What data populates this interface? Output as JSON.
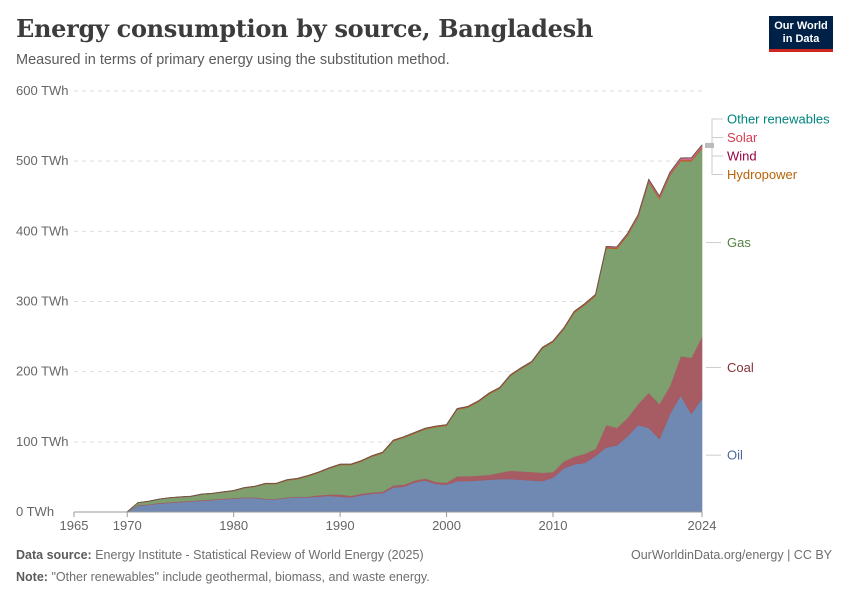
{
  "header": {
    "title": "Energy consumption by source, Bangladesh",
    "subtitle": "Measured in terms of primary energy using the substitution method."
  },
  "logo": {
    "line1": "Our World",
    "line2": "in Data"
  },
  "footer": {
    "source_label": "Data source:",
    "source_text": "Energy Institute - Statistical Review of World Energy (2025)",
    "link": "OurWorldinData.org/energy | CC BY",
    "note_label": "Note:",
    "note_text": "\"Other renewables\" include geothermal, biomass, and waste energy."
  },
  "chart_data": {
    "type": "area",
    "stacked": true,
    "title": "Energy consumption by source, Bangladesh",
    "unit": "TWh",
    "ylim": [
      0,
      600
    ],
    "y_ticks": [
      0,
      100,
      200,
      300,
      400,
      500,
      600
    ],
    "y_tick_labels": [
      "0 TWh",
      "100 TWh",
      "200 TWh",
      "300 TWh",
      "400 TWh",
      "500 TWh",
      "600 TWh"
    ],
    "xlim": [
      1965,
      2024
    ],
    "x_ticks": [
      1965,
      1970,
      1980,
      1990,
      2000,
      2010,
      2024
    ],
    "x_tick_labels": [
      "1965",
      "1970",
      "1980",
      "1990",
      "2000",
      "2010",
      "2024"
    ],
    "grid": true,
    "x": [
      1965,
      1966,
      1967,
      1968,
      1969,
      1970,
      1971,
      1972,
      1973,
      1974,
      1975,
      1976,
      1977,
      1978,
      1979,
      1980,
      1981,
      1982,
      1983,
      1984,
      1985,
      1986,
      1987,
      1988,
      1989,
      1990,
      1991,
      1992,
      1993,
      1994,
      1995,
      1996,
      1997,
      1998,
      1999,
      2000,
      2001,
      2002,
      2003,
      2004,
      2005,
      2006,
      2007,
      2008,
      2009,
      2010,
      2011,
      2012,
      2013,
      2014,
      2015,
      2016,
      2017,
      2018,
      2019,
      2020,
      2021,
      2022,
      2023,
      2024
    ],
    "series": [
      {
        "name": "Oil",
        "color": "#6d87b1",
        "label_color": "#4c6a9c",
        "values": [
          0,
          0,
          0,
          0,
          0,
          0,
          9,
          10,
          12,
          13,
          14,
          15,
          16,
          17,
          18,
          19,
          20,
          20,
          18,
          18,
          20,
          21,
          21,
          22,
          23,
          22,
          21,
          24,
          26,
          27,
          35,
          36,
          42,
          45,
          40,
          39,
          44,
          44,
          45,
          46,
          47,
          47,
          46,
          45,
          44,
          49,
          62,
          68,
          70,
          80,
          92,
          95,
          108,
          124,
          120,
          104,
          140,
          166,
          140,
          162
        ]
      },
      {
        "name": "Coal",
        "color": "#a55860",
        "label_color": "#883039",
        "values": [
          0,
          0,
          0,
          0,
          0,
          0,
          1,
          1,
          1,
          1,
          1,
          1,
          1,
          1,
          1,
          1,
          1,
          1,
          1,
          1,
          1,
          1,
          1,
          2,
          2,
          3,
          2,
          2,
          2,
          2,
          3,
          3,
          3,
          3,
          3,
          3,
          7,
          7,
          7,
          7,
          9,
          12,
          12,
          12,
          12,
          8,
          10,
          11,
          13,
          10,
          32,
          25,
          26,
          30,
          50,
          50,
          40,
          56,
          80,
          88
        ]
      },
      {
        "name": "Gas",
        "color": "#7b9e6c",
        "label_color": "#578145",
        "values": [
          0,
          0,
          0,
          0,
          0,
          0,
          3,
          4,
          5,
          6,
          6,
          6,
          8,
          8,
          9,
          10,
          13,
          15,
          21,
          21,
          24,
          25,
          29,
          32,
          37,
          42,
          44,
          46,
          51,
          55,
          63,
          67,
          67,
          70,
          78,
          81,
          95,
          98,
          105,
          115,
          120,
          135,
          146,
          156,
          177,
          185,
          188,
          205,
          212,
          218,
          252,
          255,
          260,
          266,
          300,
          292,
          300,
          278,
          280,
          268
        ]
      },
      {
        "name": "Hydropower",
        "color": "#c05917",
        "label_color": "#b8620a",
        "values": [
          0,
          0,
          0,
          0,
          0,
          0.2,
          0.3,
          0.3,
          0.4,
          0.4,
          0.5,
          0.5,
          0.5,
          0.6,
          0.6,
          0.6,
          0.7,
          0.7,
          0.8,
          0.8,
          0.9,
          0.9,
          1,
          1,
          1.1,
          1.1,
          1.1,
          1.2,
          1.2,
          1.2,
          1.3,
          1.3,
          1.3,
          1.3,
          1.4,
          1.4,
          1.4,
          1.4,
          1.4,
          1.5,
          1.5,
          1.5,
          1.5,
          1.5,
          1.5,
          1.5,
          1.6,
          1.6,
          1.6,
          1.6,
          1.6,
          1.7,
          1.7,
          1.7,
          1.8,
          1.8,
          1.8,
          1.8,
          1.8,
          1.8
        ]
      },
      {
        "name": "Wind",
        "color": "#a2559c",
        "label_color": "#970046",
        "values": [
          0,
          0,
          0,
          0,
          0,
          0,
          0,
          0,
          0,
          0,
          0,
          0,
          0,
          0,
          0,
          0,
          0,
          0,
          0,
          0,
          0,
          0,
          0,
          0,
          0,
          0,
          0,
          0,
          0,
          0,
          0,
          0,
          0,
          0,
          0,
          0,
          0,
          0,
          0,
          0,
          0,
          0,
          0,
          0,
          0,
          0,
          0,
          0,
          0,
          0,
          0,
          0,
          0,
          0,
          0,
          0,
          0,
          0.1,
          0.1,
          0.2
        ]
      },
      {
        "name": "Solar",
        "color": "#e0608a",
        "label_color": "#d73c50",
        "values": [
          0,
          0,
          0,
          0,
          0,
          0,
          0,
          0,
          0,
          0,
          0,
          0,
          0,
          0,
          0,
          0,
          0,
          0,
          0,
          0,
          0,
          0,
          0,
          0,
          0,
          0,
          0,
          0,
          0,
          0,
          0,
          0,
          0,
          0,
          0,
          0,
          0,
          0,
          0,
          0,
          0,
          0,
          0,
          0,
          0.1,
          0.2,
          0.3,
          0.4,
          0.5,
          0.6,
          0.8,
          1,
          1.2,
          1.4,
          1.6,
          1.8,
          2,
          2.2,
          2.4,
          2.6
        ]
      },
      {
        "name": "Other renewables",
        "color": "#44a4a2",
        "label_color": "#00847e",
        "values": [
          0,
          0,
          0,
          0,
          0,
          0,
          0,
          0,
          0,
          0,
          0,
          0,
          0,
          0,
          0,
          0,
          0,
          0,
          0,
          0,
          0,
          0,
          0,
          0,
          0,
          0,
          0,
          0,
          0,
          0,
          0,
          0,
          0,
          0,
          0,
          0,
          0,
          0,
          0,
          0,
          0,
          0,
          0,
          0,
          0,
          0,
          0,
          0,
          0,
          0,
          0,
          0,
          0,
          0.5,
          0.5,
          0.5,
          0.5,
          0.5,
          0.5,
          0.5
        ]
      }
    ],
    "legend": "right, inline end labels"
  }
}
